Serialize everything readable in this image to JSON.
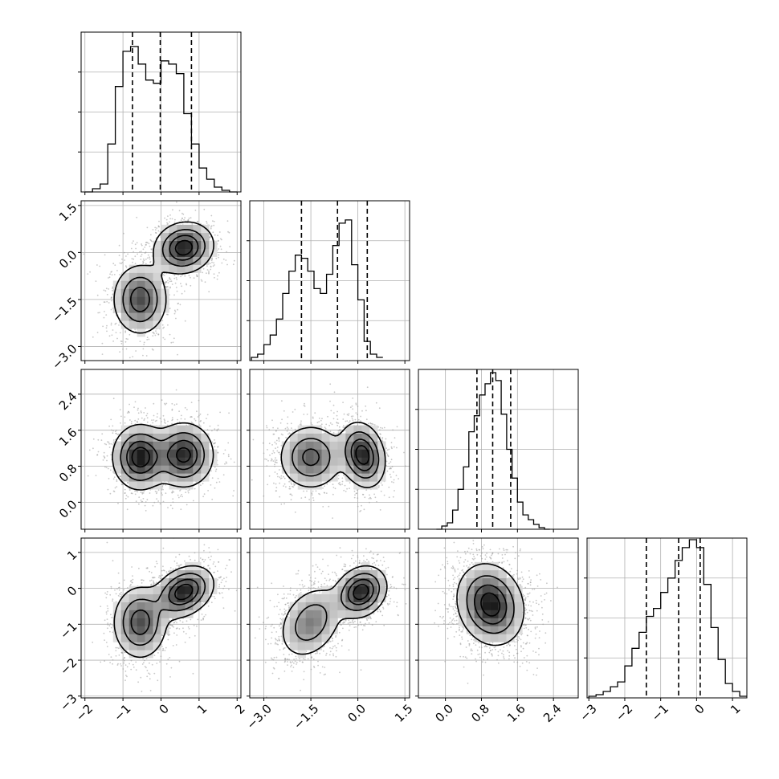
{
  "chart_data": {
    "type": "corner",
    "parameters": 4,
    "grid": true,
    "colors": {
      "line": "#000000",
      "grid": "#b0b0b0",
      "scatter": "#9a9a9a"
    },
    "axes": [
      {
        "index": 0,
        "range": [
          -2.1,
          2.1
        ],
        "ticks": [
          -2,
          -1,
          0,
          1,
          2
        ],
        "tick_labels": [
          "−2",
          "−1",
          "0",
          "1",
          "2"
        ]
      },
      {
        "index": 1,
        "range": [
          -3.45,
          1.65
        ],
        "ticks": [
          -3.0,
          -1.5,
          0.0,
          1.5
        ],
        "tick_labels": [
          "−3.0",
          "−1.5",
          "0.0",
          "1.5"
        ]
      },
      {
        "index": 2,
        "range": [
          -0.6,
          2.95
        ],
        "ticks": [
          0.0,
          0.8,
          1.6,
          2.4
        ],
        "tick_labels": [
          "0.0",
          "0.8",
          "1.6",
          "2.4"
        ]
      },
      {
        "index": 3,
        "range": [
          -3.05,
          1.4
        ],
        "ticks": [
          -3,
          -2,
          -1,
          0,
          1
        ],
        "tick_labels": [
          "−3",
          "−2",
          "−1",
          "0",
          "1"
        ]
      }
    ],
    "histograms": [
      {
        "param": 0,
        "quantiles": [
          -0.75,
          -0.02,
          0.8
        ],
        "bins": {
          "start": -2.0,
          "step": 0.2
        },
        "counts": [
          0,
          2,
          5,
          30,
          66,
          88,
          91,
          80,
          70,
          68,
          82,
          80,
          74,
          49,
          30,
          15,
          8,
          3,
          1,
          0
        ],
        "ylim": [
          0,
          100
        ]
      },
      {
        "param": 1,
        "quantiles": [
          -1.8,
          -0.65,
          0.3
        ],
        "bins": {
          "start": -3.4,
          "step": 0.2
        },
        "counts": [
          2,
          4,
          10,
          16,
          26,
          42,
          56,
          66,
          64,
          56,
          45,
          42,
          54,
          72,
          86,
          88,
          60,
          38,
          12,
          4,
          2
        ],
        "ylim": [
          0,
          100
        ]
      },
      {
        "param": 2,
        "quantiles": [
          0.7,
          1.05,
          1.45
        ],
        "bins": {
          "start": -0.2,
          "step": 0.12
        },
        "counts": [
          0,
          2,
          4,
          12,
          25,
          39,
          61,
          71,
          84,
          91,
          98,
          93,
          72,
          50,
          32,
          17,
          9,
          6,
          3,
          1,
          0
        ],
        "ylim": [
          0,
          100
        ]
      },
      {
        "param": 3,
        "quantiles": [
          -1.4,
          -0.5,
          0.1
        ],
        "bins": {
          "start": -3.0,
          "step": 0.2
        },
        "counts": [
          1,
          2,
          4,
          7,
          10,
          20,
          31,
          41,
          51,
          56,
          66,
          75,
          86,
          94,
          99,
          94,
          71,
          44,
          24,
          9,
          4,
          1
        ],
        "ylim": [
          0,
          100
        ]
      }
    ],
    "panels": [
      {
        "row": 1,
        "col": 0,
        "blobs": [
          {
            "x": -0.55,
            "y": -1.5,
            "sx": 0.35,
            "sy": 0.55,
            "rho": 0.0,
            "w": 0.5
          },
          {
            "x": 0.6,
            "y": 0.15,
            "sx": 0.38,
            "sy": 0.4,
            "rho": 0.1,
            "w": 0.5
          }
        ]
      },
      {
        "row": 2,
        "col": 0,
        "blobs": [
          {
            "x": -0.55,
            "y": 1.0,
            "sx": 0.35,
            "sy": 0.35,
            "rho": 0.0,
            "w": 0.5
          },
          {
            "x": 0.6,
            "y": 1.05,
            "sx": 0.38,
            "sy": 0.35,
            "rho": 0.0,
            "w": 0.5
          }
        ]
      },
      {
        "row": 2,
        "col": 1,
        "blobs": [
          {
            "x": -1.5,
            "y": 1.0,
            "sx": 0.5,
            "sy": 0.35,
            "rho": 0.0,
            "w": 0.5
          },
          {
            "x": 0.15,
            "y": 1.05,
            "sx": 0.35,
            "sy": 0.35,
            "rho": -0.2,
            "w": 0.5
          }
        ]
      },
      {
        "row": 3,
        "col": 0,
        "blobs": [
          {
            "x": -0.55,
            "y": -0.95,
            "sx": 0.35,
            "sy": 0.5,
            "rho": 0.0,
            "w": 0.5
          },
          {
            "x": 0.6,
            "y": -0.1,
            "sx": 0.38,
            "sy": 0.35,
            "rho": 0.3,
            "w": 0.5
          }
        ]
      },
      {
        "row": 3,
        "col": 1,
        "blobs": [
          {
            "x": -1.5,
            "y": -0.95,
            "sx": 0.5,
            "sy": 0.5,
            "rho": 0.3,
            "w": 0.5
          },
          {
            "x": 0.1,
            "y": -0.1,
            "sx": 0.4,
            "sy": 0.35,
            "rho": 0.2,
            "w": 0.5
          }
        ]
      },
      {
        "row": 3,
        "col": 2,
        "blobs": [
          {
            "x": 1.0,
            "y": -0.45,
            "sx": 0.36,
            "sy": 0.55,
            "rho": -0.15,
            "w": 1.0
          }
        ]
      }
    ]
  }
}
